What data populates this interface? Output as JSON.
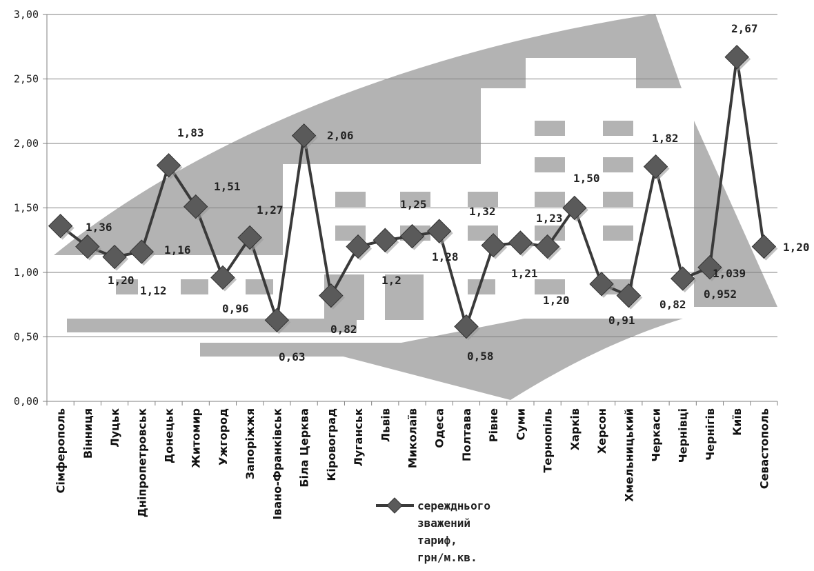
{
  "chart_data": {
    "type": "line",
    "categories": [
      "Сімферополь",
      "Вінниця",
      "Луцьк",
      "Дніпропетровськ",
      "Донецьк",
      "Житомир",
      "Ужгород",
      "Запоріжжя",
      "Івано-Франківськ",
      "Біла Церква",
      "Кіровоград",
      "Луганськ",
      "Львів",
      "Миколаїв",
      "Одеса",
      "Полтава",
      "Рівне",
      "Суми",
      "Тернопіль",
      "Харків",
      "Херсон",
      "Хмельницький",
      "Черкаси",
      "Чернівці",
      "Чернігів",
      "Київ",
      "Севастополь"
    ],
    "series": [
      {
        "name": "сережднього зважений тариф, грн/м.кв.",
        "values": [
          1.36,
          1.2,
          1.12,
          1.16,
          1.83,
          1.51,
          0.96,
          1.27,
          0.63,
          2.06,
          0.82,
          1.2,
          1.25,
          1.28,
          1.32,
          0.58,
          1.21,
          1.23,
          1.2,
          1.5,
          0.91,
          0.82,
          1.82,
          0.952,
          1.039,
          2.67,
          1.2
        ],
        "color": "#3a3a3a",
        "marker_color": "#5a5a5a"
      }
    ],
    "data_labels": [
      "1,36",
      "1,20",
      "1,12",
      "1,16",
      "1,83",
      "1,51",
      "0,96",
      "1,27",
      "0,63",
      "2,06",
      "0,82",
      "1,2",
      "1,25",
      "1,28",
      "1,32",
      "0,58",
      "1,21",
      "1,23",
      "1,20",
      "1,50",
      "0,91",
      "0,82",
      "1,82",
      "0,952",
      "1,039",
      "2,67",
      "1,20"
    ],
    "y_ticks": [
      "0,00",
      "0,50",
      "1,00",
      "1,50",
      "2,00",
      "2,50",
      "3,00"
    ],
    "ylim": [
      0,
      3
    ],
    "grid": true,
    "legend_position": "bottom",
    "legend_lines": [
      "сережднього",
      "зважений",
      "тариф,",
      "грн/м.кв."
    ],
    "background_graphic_color": "#b3b3b3"
  }
}
